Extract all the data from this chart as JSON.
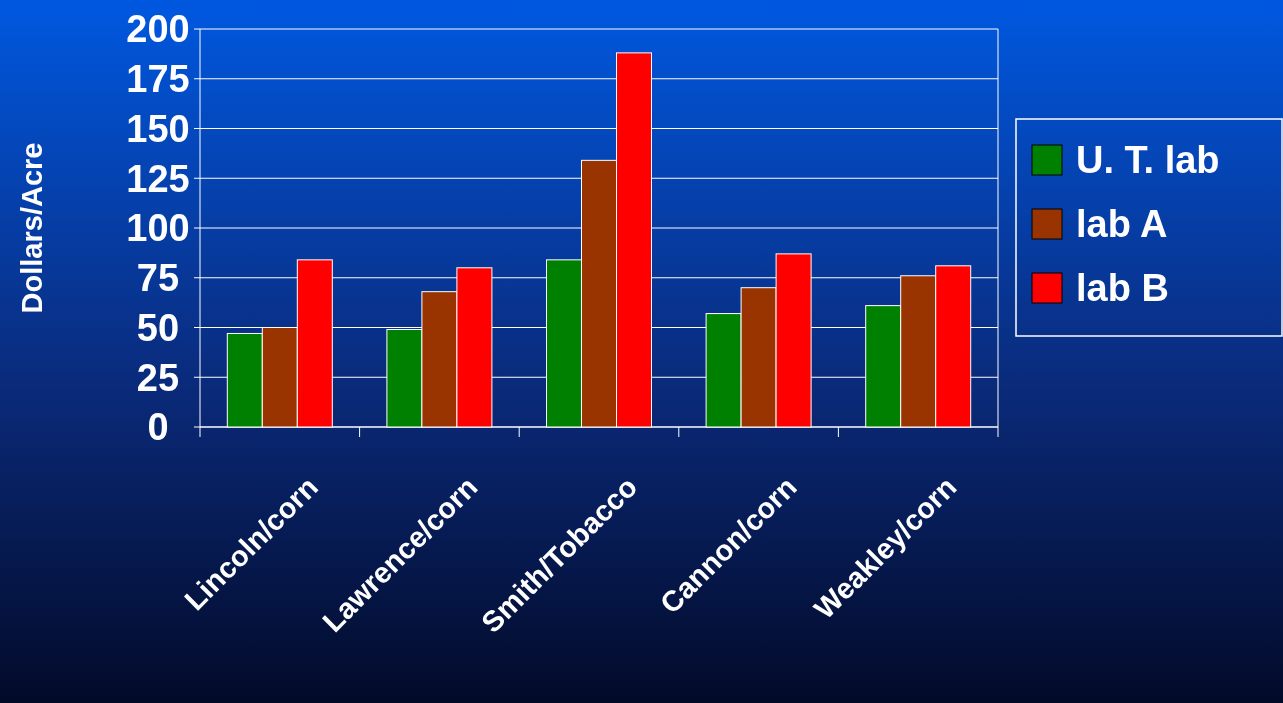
{
  "chart_data": {
    "type": "bar",
    "ylabel": "Dollars/Acre",
    "categories": [
      "Lincoln/corn",
      "Lawrence/corn",
      "Smith/Tobacco",
      "Cannon/corn",
      "Weakley/corn"
    ],
    "series": [
      {
        "name": "U. T. lab",
        "color": "#008000",
        "values": [
          47,
          49,
          84,
          57,
          61
        ]
      },
      {
        "name": "lab A",
        "color": "#993300",
        "values": [
          50,
          68,
          134,
          70,
          76
        ]
      },
      {
        "name": "lab B",
        "color": "#ff0000",
        "values": [
          84,
          80,
          188,
          87,
          81
        ]
      }
    ],
    "ylim": [
      0,
      200
    ],
    "yticks": [
      0,
      25,
      50,
      75,
      100,
      125,
      150,
      175,
      200
    ],
    "grid": "y",
    "legend": "right"
  }
}
